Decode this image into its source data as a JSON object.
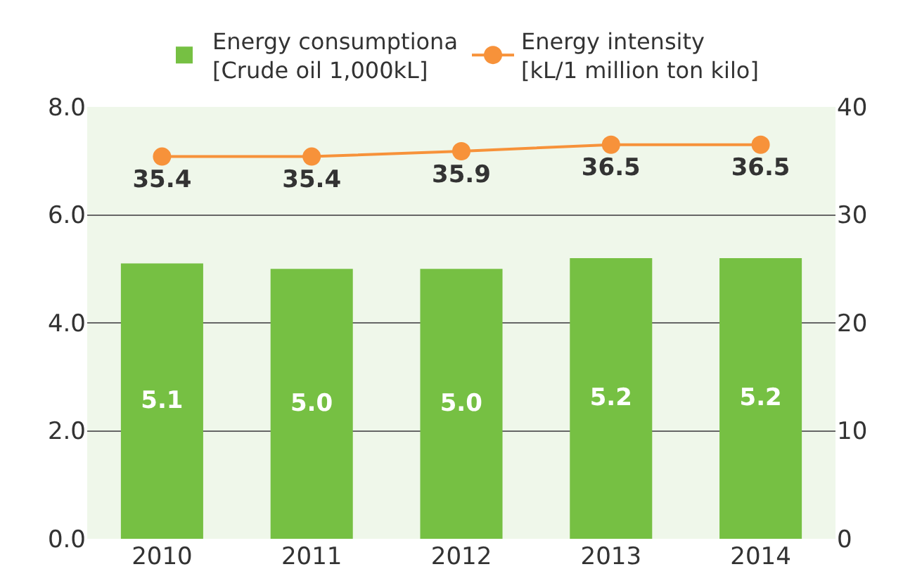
{
  "chart_data": {
    "type": "bar",
    "categories": [
      "2010",
      "2011",
      "2012",
      "2013",
      "2014"
    ],
    "series": [
      {
        "name": "Energy consumptiona\n[Crude oil 1,000kL]",
        "color": "#76c043",
        "values": [
          5.1,
          5.0,
          5.0,
          5.2,
          5.2
        ],
        "value_labels": [
          "5.1",
          "5.0",
          "5.0",
          "5.2",
          "5.2"
        ]
      },
      {
        "name": "Energy intensity\n[kL/1 million ton kilo]",
        "type": "line",
        "axis": "y2",
        "color": "#f7923a",
        "values": [
          35.4,
          35.4,
          35.9,
          36.5,
          36.5
        ],
        "value_labels": [
          "35.4",
          "35.4",
          "35.9",
          "36.5",
          "36.5"
        ]
      }
    ],
    "ylim": [
      0,
      8
    ],
    "yticks": [
      {
        "value": 0,
        "label": "0.0"
      },
      {
        "value": 2,
        "label": "2.0"
      },
      {
        "value": 4,
        "label": "4.0"
      },
      {
        "value": 6,
        "label": "6.0"
      },
      {
        "value": 8,
        "label": "8.0"
      }
    ],
    "y2lim": [
      0,
      40
    ],
    "y2ticks": [
      0,
      10,
      20,
      30,
      40
    ],
    "grid": "y",
    "legend": "top",
    "marker": "circle",
    "line_style": "solid"
  }
}
